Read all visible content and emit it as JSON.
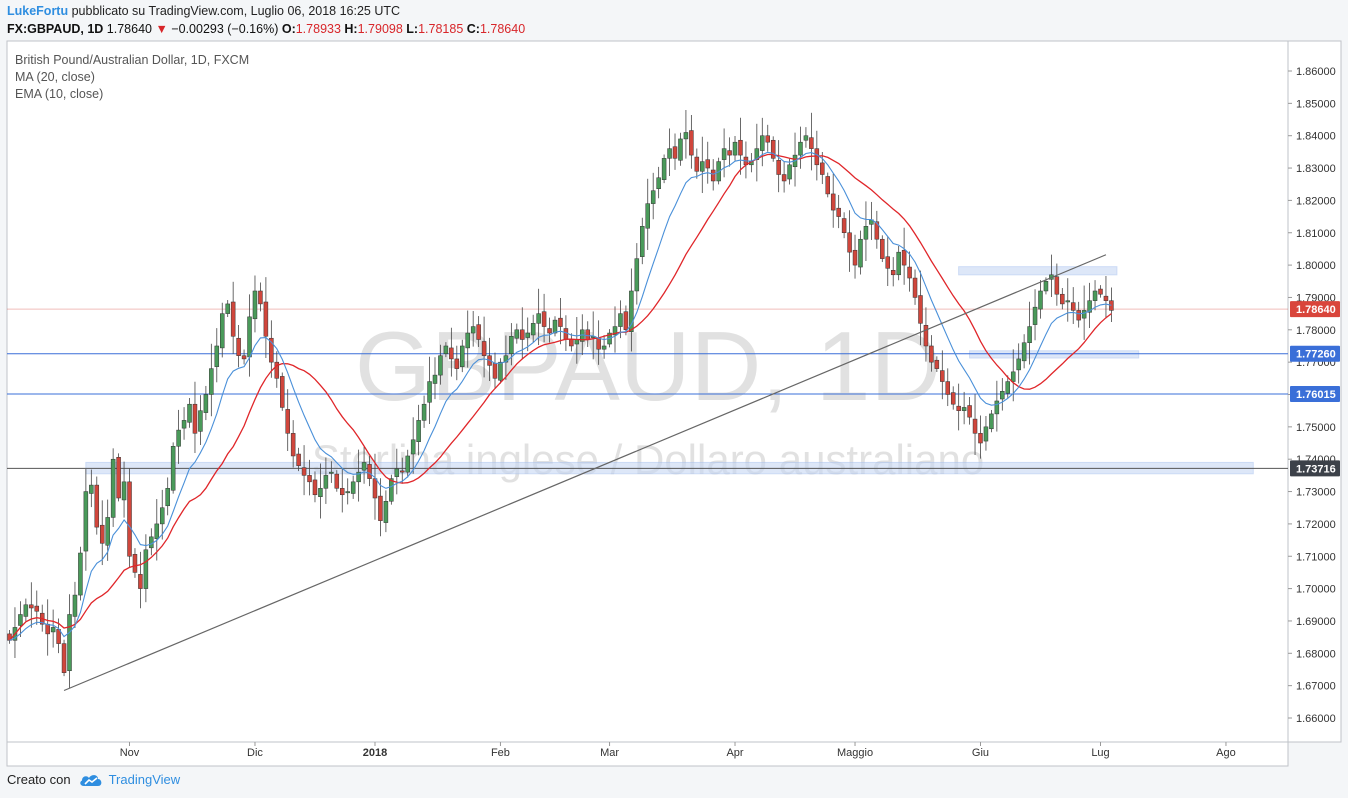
{
  "header": {
    "author": "LukeFortu",
    "published_text": "pubblicato su TradingView.com, Luglio 06, 2018 16:25 UTC",
    "symbol": "FX:GBPAUD, 1D",
    "last": "1.78640",
    "change": "−0.00293 (−0.16%)",
    "o_label": "O:",
    "o": "1.78933",
    "h_label": "H:",
    "h": "1.79098",
    "l_label": "L:",
    "l": "1.78185",
    "c_label": "C:",
    "c": "1.78640"
  },
  "legend": {
    "title": "British Pound/Australian Dollar, 1D, FXCM",
    "ma": "MA (20, close)",
    "ema": "EMA (10, close)"
  },
  "watermark": {
    "big": "GBPAUD, 1D",
    "small": "Sterlina inglese / Dollaro australiano"
  },
  "footer": {
    "created_with": "Creato con",
    "brand": "TradingView"
  },
  "colors": {
    "up": "#4a9a5a",
    "down": "#d0463c",
    "ma": "#4a90d9",
    "ema": "#e0262a",
    "hline_blue": "#3a6fd8",
    "hline_gray": "#555555",
    "trendline": "#666666",
    "price_badge": "#d9453b"
  },
  "chart_data": {
    "type": "candlestick",
    "ylim": [
      1.655,
      1.868
    ],
    "y_ticks": [
      "1.86000",
      "1.85000",
      "1.84000",
      "1.83000",
      "1.82000",
      "1.81000",
      "1.80000",
      "1.79000",
      "1.78000",
      "1.77000",
      "1.76000",
      "1.75000",
      "1.74000",
      "1.73000",
      "1.72000",
      "1.71000",
      "1.70000",
      "1.69000",
      "1.68000",
      "1.67000",
      "1.66000"
    ],
    "x_ticks": [
      {
        "label": "Nov",
        "bar": 22
      },
      {
        "label": "Dic",
        "bar": 45
      },
      {
        "label": "2018",
        "bar": 67,
        "bold": true
      },
      {
        "label": "Feb",
        "bar": 90
      },
      {
        "label": "Mar",
        "bar": 110
      },
      {
        "label": "Apr",
        "bar": 133
      },
      {
        "label": "Maggio",
        "bar": 155
      },
      {
        "label": "Giu",
        "bar": 178
      },
      {
        "label": "Lug",
        "bar": 200
      },
      {
        "label": "Ago",
        "bar": 223
      }
    ],
    "closes": [
      1.684,
      1.688,
      1.692,
      1.695,
      1.694,
      1.693,
      1.689,
      1.686,
      1.688,
      1.683,
      1.674,
      1.692,
      1.698,
      1.711,
      1.73,
      1.732,
      1.719,
      1.714,
      1.722,
      1.74,
      1.728,
      1.733,
      1.71,
      1.705,
      1.7,
      1.712,
      1.716,
      1.72,
      1.725,
      1.731,
      1.744,
      1.749,
      1.752,
      1.757,
      1.748,
      1.755,
      1.76,
      1.768,
      1.775,
      1.785,
      1.788,
      1.778,
      1.772,
      1.771,
      1.784,
      1.792,
      1.788,
      1.778,
      1.77,
      1.765,
      1.756,
      1.748,
      1.741,
      1.738,
      1.735,
      1.733,
      1.729,
      1.731,
      1.735,
      1.736,
      1.731,
      1.729,
      1.73,
      1.733,
      1.736,
      1.739,
      1.734,
      1.728,
      1.721,
      1.727,
      1.734,
      1.737,
      1.736,
      1.741,
      1.746,
      1.752,
      1.757,
      1.764,
      1.766,
      1.772,
      1.775,
      1.771,
      1.768,
      1.775,
      1.779,
      1.781,
      1.777,
      1.772,
      1.769,
      1.765,
      1.77,
      1.772,
      1.778,
      1.78,
      1.777,
      1.779,
      1.782,
      1.785,
      1.781,
      1.779,
      1.783,
      1.781,
      1.777,
      1.775,
      1.777,
      1.78,
      1.777,
      1.778,
      1.774,
      1.775,
      1.779,
      1.781,
      1.785,
      1.78,
      1.792,
      1.802,
      1.812,
      1.819,
      1.823,
      1.827,
      1.833,
      1.836,
      1.833,
      1.839,
      1.841,
      1.834,
      1.829,
      1.832,
      1.83,
      1.826,
      1.832,
      1.836,
      1.834,
      1.838,
      1.834,
      1.831,
      1.832,
      1.836,
      1.84,
      1.838,
      1.833,
      1.828,
      1.826,
      1.831,
      1.834,
      1.838,
      1.84,
      1.836,
      1.831,
      1.828,
      1.822,
      1.817,
      1.815,
      1.81,
      1.804,
      1.8,
      1.808,
      1.812,
      1.814,
      1.808,
      1.802,
      1.799,
      1.797,
      1.804,
      1.8,
      1.796,
      1.79,
      1.782,
      1.775,
      1.77,
      1.768,
      1.764,
      1.76,
      1.757,
      1.755,
      1.756,
      1.753,
      1.748,
      1.745,
      1.75,
      1.754,
      1.758,
      1.761,
      1.764,
      1.767,
      1.771,
      1.776,
      1.781,
      1.787,
      1.792,
      1.795,
      1.797,
      1.791,
      1.788,
      1.789,
      1.786,
      1.783,
      1.786,
      1.789,
      1.792,
      1.791,
      1.789,
      1.786
    ],
    "ma_period": 20,
    "ema_period": 10,
    "last_price": 1.7864,
    "price_labels": [
      {
        "value": 1.7864,
        "text": "1.78640",
        "style": "last"
      },
      {
        "value": 1.7726,
        "text": "1.77260",
        "style": "blue"
      },
      {
        "value": 1.76015,
        "text": "1.76015",
        "style": "blue"
      },
      {
        "value": 1.73716,
        "text": "1.73716",
        "style": "gray"
      }
    ],
    "trendline": {
      "from": {
        "bar": 10,
        "value": 1.6685
      },
      "to": {
        "bar": 201,
        "value": 1.8032
      }
    },
    "zones": [
      {
        "from_bar": 174,
        "to_bar": 203,
        "low": 1.797,
        "high": 1.7995
      },
      {
        "from_bar": 176,
        "to_bar": 207,
        "low": 1.7713,
        "high": 1.7735
      },
      {
        "from_bar": 14,
        "to_bar": 228,
        "low": 1.7355,
        "high": 1.739
      }
    ]
  }
}
